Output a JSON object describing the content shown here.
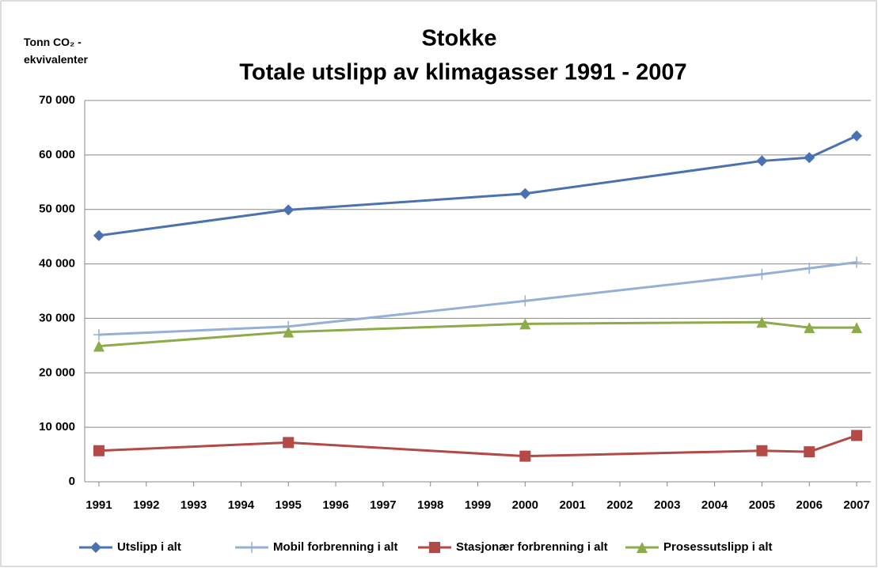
{
  "chart_data": {
    "type": "line",
    "title": "Stokke",
    "subtitle": "Totale utslipp av klimagasser 1991 - 2007",
    "y_label": "Tonn CO₂ - ekvivalenter",
    "x": [
      1991,
      1995,
      2000,
      2005,
      2006,
      2007
    ],
    "xlim": [
      1990.7,
      2007.3
    ],
    "xticks": [
      1991,
      1992,
      1993,
      1994,
      1995,
      1996,
      1997,
      1998,
      1999,
      2000,
      2001,
      2002,
      2003,
      2004,
      2005,
      2006,
      2007
    ],
    "ylim": [
      0,
      70000
    ],
    "yticks": [
      0,
      {
        "value": 10000,
        "label": "10 000"
      },
      {
        "value": 20000,
        "label": "20 000"
      },
      {
        "value": 30000,
        "label": "30 000"
      },
      {
        "value": 40000,
        "label": "40 000"
      },
      {
        "value": 50000,
        "label": "50 000"
      },
      {
        "value": 60000,
        "label": "60 000"
      },
      {
        "value": 70000,
        "label": "70 000"
      }
    ],
    "grid": true,
    "legend": "bottom",
    "series": [
      {
        "name": "Utslipp i alt",
        "color": "#4a72b0",
        "marker": "diamond",
        "values": [
          45200,
          49900,
          52900,
          58900,
          59500,
          63500
        ]
      },
      {
        "name": "Mobil forbrenning i alt",
        "color": "#95b0d6",
        "marker": "plus",
        "values": [
          27000,
          28500,
          33200,
          38100,
          39200,
          40300
        ]
      },
      {
        "name": "Stasjonær forbrenning i alt",
        "color": "#b44a47",
        "marker": "square",
        "values": [
          5700,
          7200,
          4700,
          5700,
          5500,
          8500
        ]
      },
      {
        "name": "Prosessutslipp i alt",
        "color": "#8cab4a",
        "marker": "triangle",
        "values": [
          24900,
          27500,
          29000,
          29300,
          28300,
          28300
        ]
      }
    ]
  }
}
